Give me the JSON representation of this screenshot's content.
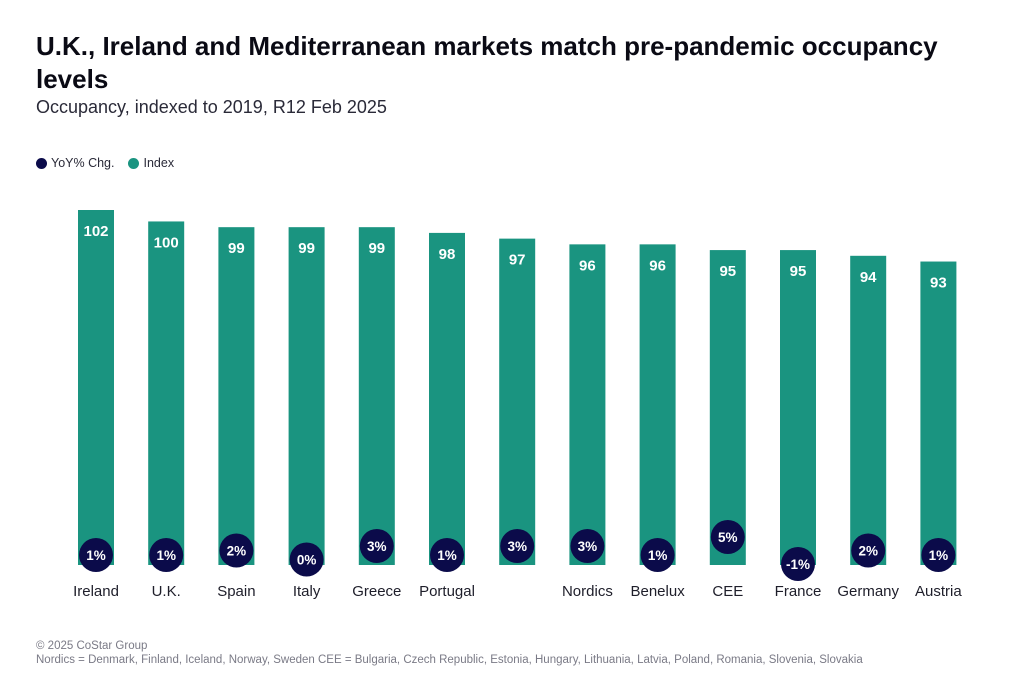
{
  "title": "U.K., Ireland and Mediterranean markets match pre-pandemic occupancy levels",
  "subtitle": "Occupancy, indexed to 2019, R12 Feb 2025",
  "legend": [
    {
      "label": "YoY% Chg.",
      "color": "#0b0b4a"
    },
    {
      "label": "Index",
      "color": "#1a9480"
    }
  ],
  "footer": {
    "copyright": "© 2025 CoStar Group",
    "note": "Nordics = Denmark, Finland, Iceland, Norway, Sweden CEE = Bulgaria, Czech Republic, Estonia, Hungary, Lithuania, Latvia, Poland, Romania, Slovenia, Slovakia"
  },
  "chart_data": {
    "type": "bar",
    "categories": [
      "Ireland",
      "U.K.",
      "Spain",
      "Italy",
      "Greece",
      "Portugal",
      "",
      "Nordics",
      "Benelux",
      "CEE",
      "France",
      "Germany",
      "Austria"
    ],
    "series": [
      {
        "name": "Index",
        "values": [
          102,
          100,
          99,
          99,
          99,
          98,
          97,
          96,
          96,
          95,
          95,
          94,
          93
        ],
        "color": "#1a9480"
      },
      {
        "name": "YoY% Chg.",
        "values": [
          1,
          1,
          2,
          0,
          3,
          1,
          3,
          3,
          1,
          5,
          -1,
          2,
          1
        ],
        "labels": [
          "1%",
          "1%",
          "2%",
          "0%",
          "3%",
          "1%",
          "3%",
          "3%",
          "1%",
          "5%",
          "-1%",
          "2%",
          "1%"
        ],
        "color": "#0b0b4a"
      }
    ],
    "ylim": [
      40,
      103
    ],
    "yoy_range": [
      -5,
      10
    ],
    "grid": false,
    "legend_position": "top-left"
  }
}
